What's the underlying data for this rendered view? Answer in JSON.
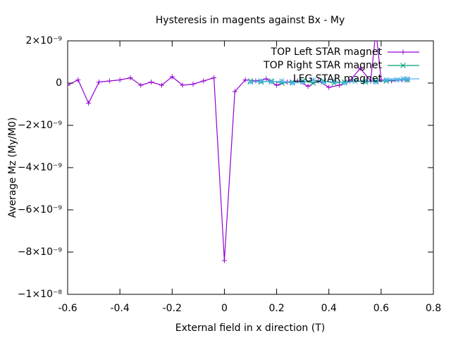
{
  "chart_data": {
    "type": "line",
    "title": "Hysteresis in magents against Bx - My",
    "xlabel": "External field in x direction (T)",
    "ylabel": "Average Mz (My/M0)",
    "xlim": [
      -0.6,
      0.8
    ],
    "xticks": [
      -0.6,
      -0.4,
      -0.2,
      0,
      0.2,
      0.4,
      0.6,
      0.8
    ],
    "ylim": [
      -1e-08,
      2e-09
    ],
    "yticks": [
      {
        "value": -1e-08,
        "label": "−1×10⁻⁸"
      },
      {
        "value": -8e-09,
        "label": "−8×10⁻⁹"
      },
      {
        "value": -6e-09,
        "label": "−6×10⁻⁹"
      },
      {
        "value": -4e-09,
        "label": "−4×10⁻⁹"
      },
      {
        "value": -2e-09,
        "label": "−2×10⁻⁹"
      },
      {
        "value": 0,
        "label": "0"
      },
      {
        "value": 2e-09,
        "label": "2×10⁻⁹"
      }
    ],
    "legend": "top-right",
    "series": [
      {
        "name": "TOP Left STAR magnet",
        "color": "#9400d3",
        "marker": "plus",
        "x": [
          -0.6,
          -0.56,
          -0.52,
          -0.48,
          -0.44,
          -0.4,
          -0.36,
          -0.32,
          -0.28,
          -0.24,
          -0.2,
          -0.16,
          -0.12,
          -0.08,
          -0.04,
          0,
          0.04,
          0.08,
          0.12,
          0.16,
          0.2,
          0.24,
          0.28,
          0.32,
          0.36,
          0.4,
          0.44,
          0.48,
          0.52,
          0.56,
          0.58,
          0.6,
          0.64,
          0.68,
          0.7
        ],
        "values": [
          -1e-10,
          1.5e-10,
          -9.5e-10,
          5e-11,
          1e-10,
          1.5e-10,
          2.5e-10,
          -1e-10,
          5e-11,
          -1e-10,
          3e-10,
          -1e-10,
          -5e-11,
          1e-10,
          2.5e-10,
          -8.4e-09,
          -4e-10,
          1.5e-10,
          1e-10,
          2e-10,
          -1e-10,
          5e-11,
          1e-10,
          -1.5e-10,
          1e-10,
          -2e-10,
          -1e-10,
          1e-10,
          7e-10,
          1e-10,
          2.5e-09,
          1.5e-10,
          1e-10,
          1.5e-10,
          1.5e-10
        ]
      },
      {
        "name": "TOP Right STAR magnet",
        "color": "#009e73",
        "marker": "cross",
        "x": [
          0.1,
          0.14,
          0.18,
          0.22,
          0.26,
          0.3,
          0.34,
          0.38,
          0.42,
          0.46,
          0.5,
          0.54,
          0.58,
          0.62,
          0.66,
          0.7
        ],
        "values": [
          1e-10,
          5e-11,
          1e-10,
          0,
          5e-11,
          1e-10,
          0,
          1e-10,
          0,
          5e-11,
          1e-10,
          5e-11,
          1e-10,
          1e-10,
          1.5e-10,
          1.5e-10
        ]
      },
      {
        "name": "LEG STAR magnet",
        "color": "#56b4e9",
        "marker": "star",
        "x": [
          0.1,
          0.14,
          0.18,
          0.22,
          0.26,
          0.3,
          0.34,
          0.38,
          0.42,
          0.46,
          0.5,
          0.54,
          0.58,
          0.62,
          0.66,
          0.7
        ],
        "values": [
          5e-11,
          1e-10,
          5e-11,
          1e-10,
          0,
          5e-11,
          1.5e-10,
          5e-11,
          1e-10,
          0,
          1e-10,
          1e-10,
          5e-11,
          1.5e-10,
          1.5e-10,
          2e-10
        ]
      }
    ]
  }
}
